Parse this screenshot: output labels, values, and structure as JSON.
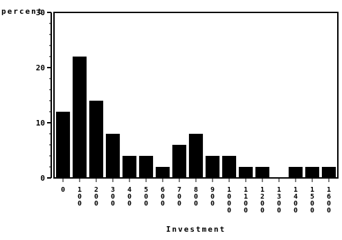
{
  "chart_data": {
    "type": "bar",
    "ylabel": "percent",
    "xlabel": "Investment",
    "ylim": [
      0,
      30
    ],
    "yticks": [
      "0",
      "10",
      "20",
      "30"
    ],
    "categories": [
      "0",
      "100",
      "200",
      "300",
      "400",
      "500",
      "600",
      "700",
      "800",
      "900",
      "1000",
      "1100",
      "1200",
      "1300",
      "1400",
      "1500",
      "1600"
    ],
    "values": [
      12,
      22,
      14,
      8,
      4,
      4,
      2,
      6,
      8,
      4,
      4,
      2,
      2,
      0,
      2,
      2,
      2
    ],
    "bar_color": "#000000",
    "grid": false,
    "legend": "none"
  }
}
